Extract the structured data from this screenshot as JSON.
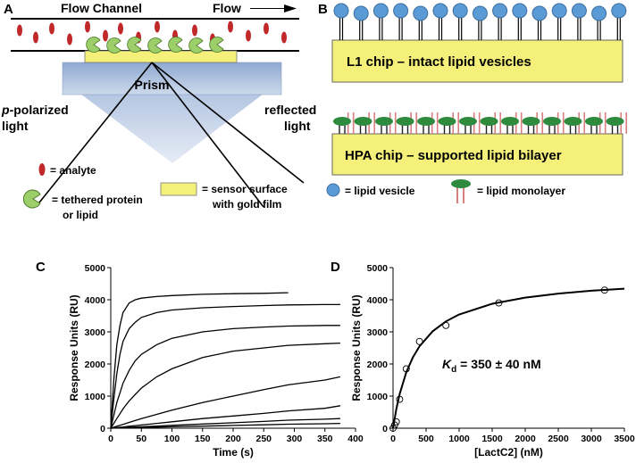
{
  "panel_a": {
    "label": "A",
    "channel_label": "Flow Channel",
    "flow_label": "Flow",
    "prism_label": "Prism",
    "incident_label": {
      "italic": "p",
      "line1": "-polarized",
      "line2": "light"
    },
    "reflected_label": [
      "reflected",
      "light"
    ],
    "legend": {
      "analyte": "= analyte",
      "protein": [
        "= tethered protein",
        "or lipid"
      ],
      "sensor": [
        "= sensor surface",
        "with gold film"
      ]
    }
  },
  "panel_b": {
    "label": "B",
    "l1_chip": "L1 chip – intact lipid vesicles",
    "hpa_chip": "HPA chip – supported lipid bilayer",
    "legend": {
      "vesicle": "= lipid vesicle",
      "monolayer": "= lipid monolayer"
    }
  },
  "chart_data": [
    {
      "type": "line",
      "panel_label": "C",
      "xlabel": "Time (s)",
      "ylabel": "Response Units (RU)",
      "color": "#000000",
      "xlim": [
        0,
        400
      ],
      "xticks": [
        0,
        50,
        100,
        150,
        200,
        250,
        300,
        350,
        400
      ],
      "ylim": [
        0,
        5000
      ],
      "yticks": [
        0,
        1000,
        2000,
        3000,
        4000,
        5000
      ],
      "x": [
        0,
        5,
        10,
        15,
        20,
        30,
        40,
        50,
        75,
        100,
        150,
        200,
        250,
        290,
        350,
        375
      ],
      "series": [
        {
          "values": [
            0,
            1500,
            2600,
            3200,
            3600,
            3900,
            4000,
            4050,
            4100,
            4130,
            4170,
            4190,
            4200,
            4220,
            null,
            null
          ]
        },
        {
          "values": [
            0,
            900,
            1700,
            2300,
            2700,
            3100,
            3300,
            3450,
            3600,
            3680,
            3750,
            3790,
            3820,
            3840,
            3850,
            3850
          ]
        },
        {
          "values": [
            0,
            400,
            800,
            1100,
            1400,
            1800,
            2100,
            2300,
            2600,
            2800,
            3000,
            3100,
            3150,
            3180,
            3200,
            3200
          ]
        },
        {
          "values": [
            0,
            150,
            300,
            450,
            600,
            850,
            1050,
            1250,
            1600,
            1850,
            2200,
            2400,
            2500,
            2580,
            2630,
            2650
          ]
        },
        {
          "values": [
            0,
            30,
            60,
            90,
            120,
            180,
            240,
            300,
            430,
            560,
            800,
            1000,
            1200,
            1350,
            1500,
            1600
          ]
        },
        {
          "values": [
            0,
            10,
            20,
            30,
            40,
            60,
            80,
            100,
            150,
            200,
            300,
            380,
            460,
            540,
            620,
            700
          ]
        },
        {
          "values": [
            0,
            5,
            10,
            15,
            20,
            25,
            35,
            45,
            65,
            90,
            130,
            170,
            210,
            250,
            280,
            300
          ]
        },
        {
          "values": [
            0,
            2,
            5,
            7,
            10,
            12,
            17,
            22,
            32,
            45,
            65,
            85,
            105,
            125,
            140,
            150
          ]
        }
      ]
    },
    {
      "type": "scatter",
      "panel_label": "D",
      "xlabel": "[LactC2] (nM)",
      "ylabel": "Response Units (RU)",
      "color": "#000000",
      "xlim": [
        0,
        3500
      ],
      "xticks": [
        0,
        500,
        1000,
        1500,
        2000,
        2500,
        3000,
        3500
      ],
      "ylim": [
        0,
        5000
      ],
      "yticks": [
        0,
        1000,
        2000,
        3000,
        4000,
        5000
      ],
      "x": [
        0,
        25,
        50,
        100,
        200,
        400,
        800,
        1600,
        3200
      ],
      "values": [
        0,
        100,
        200,
        900,
        1850,
        2700,
        3200,
        3900,
        4300
      ],
      "fit": {
        "x": [
          0,
          50,
          100,
          200,
          300,
          400,
          600,
          800,
          1000,
          1500,
          2000,
          2500,
          3000,
          3500
        ],
        "values": [
          0,
          598,
          1062,
          1738,
          2206,
          2549,
          3019,
          3325,
          3541,
          3876,
          4068,
          4193,
          4281,
          4345
        ]
      },
      "annotation": {
        "italic": "K",
        "sub": "d",
        "rest": " = 350 ± 40 nM"
      }
    }
  ]
}
